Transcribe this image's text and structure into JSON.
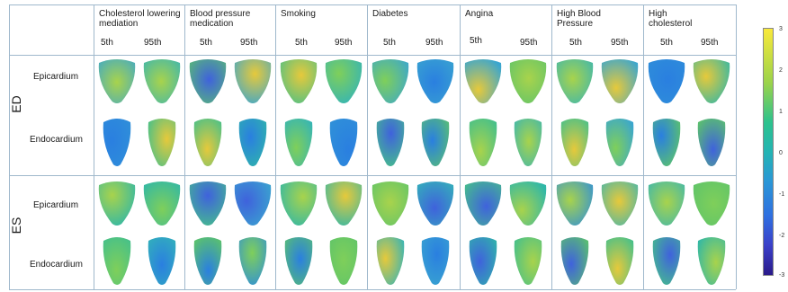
{
  "columns": [
    {
      "title": "Cholesterol lowering\nmediation",
      "p5": "5th",
      "p95": "95th"
    },
    {
      "title": "Blood pressure\nmedication",
      "p5": "5th",
      "p95": "95th"
    },
    {
      "title": "Smoking",
      "p5": "5th",
      "p95": "95th"
    },
    {
      "title": "Diabetes",
      "p5": "5th",
      "p95": "95th"
    },
    {
      "title": "Angina",
      "p5": "5th",
      "p95": "95th"
    },
    {
      "title": "High Blood\nPressure",
      "p5": "5th",
      "p95": "95th"
    },
    {
      "title": "High\ncholesterol",
      "p5": "5th",
      "p95": "95th"
    }
  ],
  "phases": [
    {
      "label": "ED",
      "rows": [
        "Epicardium",
        "Endocardium"
      ]
    },
    {
      "label": "ES",
      "rows": [
        "Epicardium",
        "Endocardium"
      ]
    }
  ],
  "colorbar": {
    "ticks": [
      "3",
      "2",
      "1",
      "0",
      "-1",
      "-2",
      "-3"
    ],
    "colors": {
      "high": "#f9e93a",
      "mid": "#24b4b3",
      "low": "#2a1a8a"
    }
  }
}
